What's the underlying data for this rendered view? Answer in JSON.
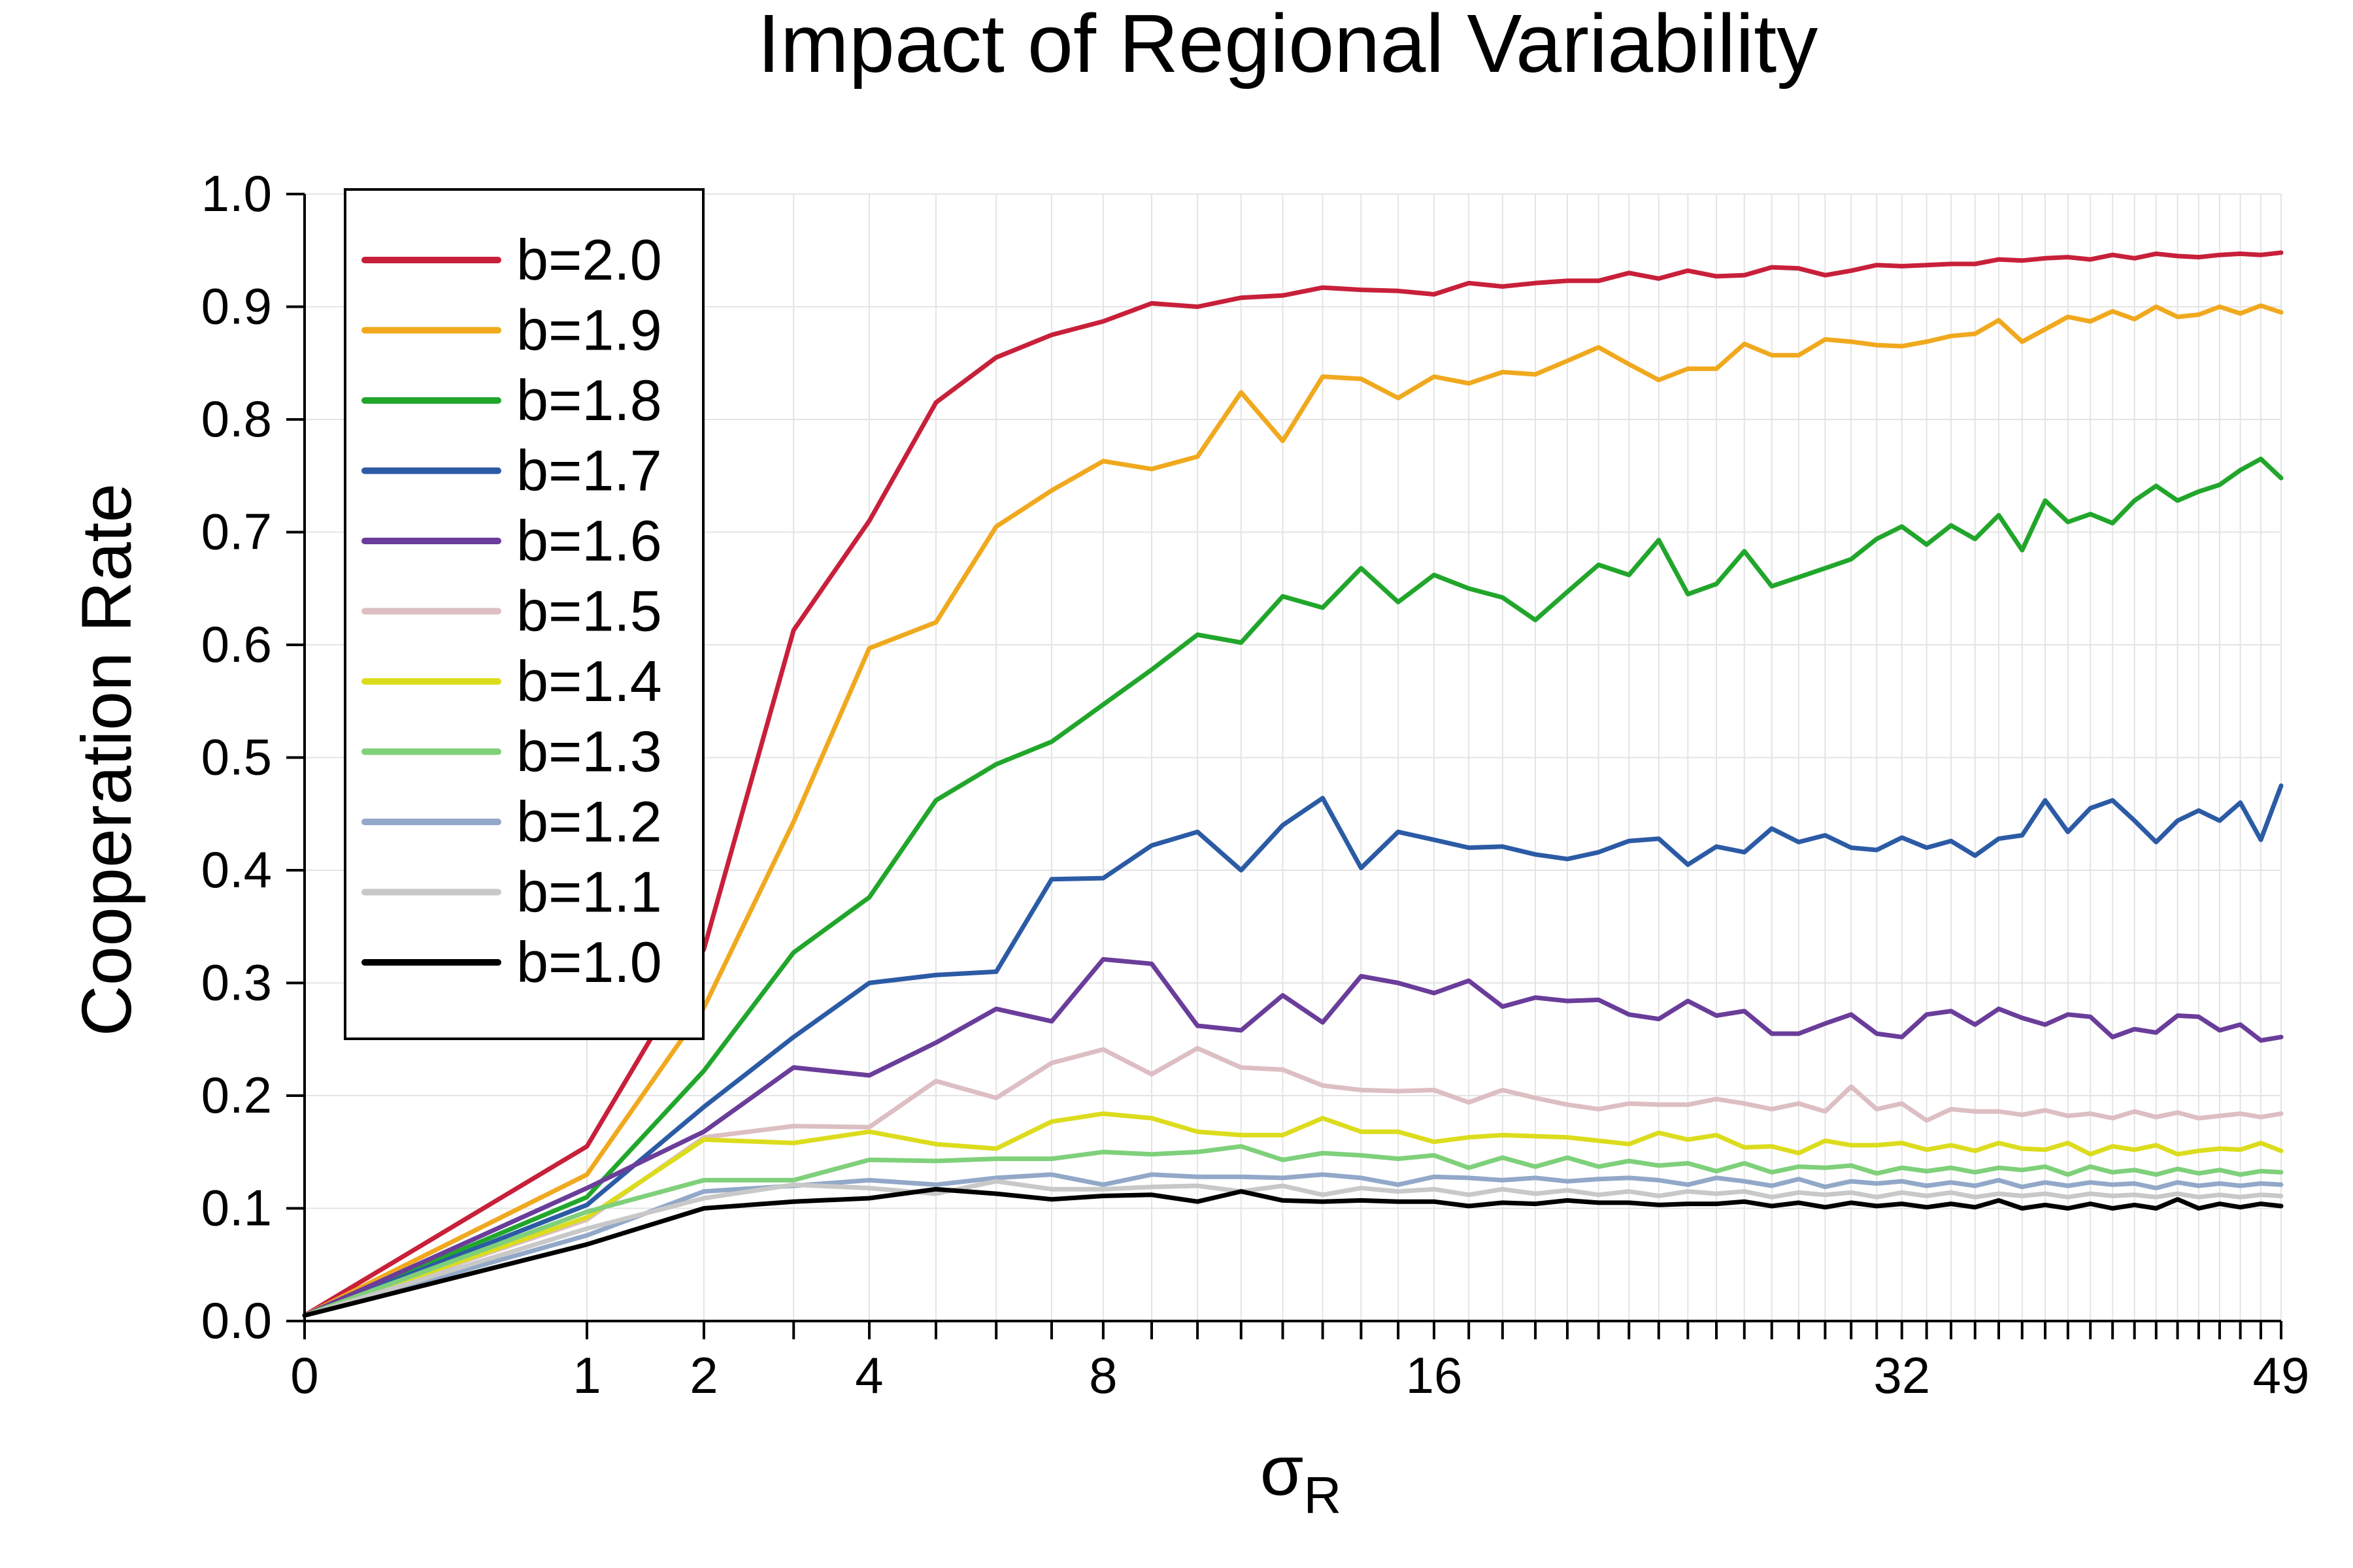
{
  "chart_data": {
    "type": "line",
    "title": "Impact of Regional Variability",
    "xlabel": "σ",
    "xlabel_sub": "R",
    "ylabel": "Cooperation Rate",
    "x_scale": "sqrt",
    "xlim": [
      0,
      49
    ],
    "ylim": [
      0,
      1
    ],
    "x_tick_labels": [
      "0",
      "1",
      "2",
      "4",
      "8",
      "16",
      "32",
      "49"
    ],
    "x_tick_values": [
      0,
      1,
      2,
      4,
      8,
      16,
      32,
      49
    ],
    "y_tick_labels": [
      "0.0",
      "0.1",
      "0.2",
      "0.3",
      "0.4",
      "0.5",
      "0.6",
      "0.7",
      "0.8",
      "0.9",
      "1.0"
    ],
    "y_tick_values": [
      0,
      0.1,
      0.2,
      0.3,
      0.4,
      0.5,
      0.6,
      0.7,
      0.8,
      0.9,
      1.0
    ],
    "grid": true,
    "legend_position": "top-left",
    "x": [
      0,
      1,
      2,
      3,
      4,
      5,
      6,
      7,
      8,
      9,
      10,
      11,
      12,
      13,
      14,
      15,
      16,
      17,
      18,
      19,
      20,
      21,
      22,
      23,
      24,
      25,
      26,
      27,
      28,
      29,
      30,
      31,
      32,
      33,
      34,
      35,
      36,
      37,
      38,
      39,
      40,
      41,
      42,
      43,
      44,
      45,
      46,
      47,
      48,
      49
    ],
    "series": [
      {
        "name": "b=2.0",
        "color": "#c8203a",
        "values": [
          0.005,
          0.155,
          0.33,
          0.613,
          0.71,
          0.815,
          0.855,
          0.875,
          0.887,
          0.903,
          0.9,
          0.908,
          0.91,
          0.917,
          0.915,
          0.914,
          0.911,
          0.921,
          0.918,
          0.921,
          0.923,
          0.923,
          0.93,
          0.925,
          0.932,
          0.927,
          0.928,
          0.935,
          0.934,
          0.928,
          0.932,
          0.937,
          0.936,
          0.937,
          0.938,
          0.938,
          0.942,
          0.941,
          0.943,
          0.944,
          0.942,
          0.946,
          0.943,
          0.947,
          0.945,
          0.944,
          0.946,
          0.947,
          0.946,
          0.948
        ]
      },
      {
        "name": "b=1.9",
        "color": "#f0a91e",
        "values": [
          0.005,
          0.13,
          0.278,
          0.443,
          0.597,
          0.62,
          0.705,
          0.737,
          0.763,
          0.756,
          0.767,
          0.824,
          0.781,
          0.838,
          0.836,
          0.819,
          0.838,
          0.832,
          0.842,
          0.84,
          0.852,
          0.864,
          0.849,
          0.835,
          0.845,
          0.845,
          0.867,
          0.857,
          0.857,
          0.871,
          0.869,
          0.866,
          0.865,
          0.869,
          0.874,
          0.876,
          0.888,
          0.869,
          0.88,
          0.891,
          0.887,
          0.896,
          0.889,
          0.9,
          0.891,
          0.893,
          0.9,
          0.894,
          0.901,
          0.895
        ]
      },
      {
        "name": "b=1.8",
        "color": "#21a62b",
        "values": [
          0.005,
          0.11,
          0.222,
          0.327,
          0.376,
          0.462,
          0.494,
          0.514,
          0.547,
          0.578,
          0.609,
          0.602,
          0.643,
          0.633,
          0.668,
          0.638,
          0.662,
          0.65,
          0.642,
          0.622,
          0.647,
          0.671,
          0.662,
          0.693,
          0.645,
          0.654,
          0.683,
          0.652,
          0.66,
          0.668,
          0.676,
          0.694,
          0.705,
          0.689,
          0.706,
          0.694,
          0.715,
          0.684,
          0.728,
          0.709,
          0.716,
          0.708,
          0.728,
          0.741,
          0.728,
          0.736,
          0.742,
          0.755,
          0.765,
          0.748
        ]
      },
      {
        "name": "b=1.7",
        "color": "#2c5ba5",
        "values": [
          0.005,
          0.103,
          0.19,
          0.252,
          0.3,
          0.307,
          0.31,
          0.392,
          0.393,
          0.422,
          0.434,
          0.4,
          0.44,
          0.464,
          0.402,
          0.434,
          0.427,
          0.42,
          0.421,
          0.414,
          0.41,
          0.416,
          0.426,
          0.428,
          0.405,
          0.421,
          0.416,
          0.437,
          0.425,
          0.431,
          0.42,
          0.418,
          0.429,
          0.42,
          0.426,
          0.413,
          0.428,
          0.431,
          0.462,
          0.434,
          0.455,
          0.462,
          0.444,
          0.425,
          0.444,
          0.453,
          0.444,
          0.46,
          0.427,
          0.475
        ]
      },
      {
        "name": "b=1.6",
        "color": "#6a3d9a",
        "values": [
          0.005,
          0.118,
          0.168,
          0.225,
          0.218,
          0.247,
          0.277,
          0.266,
          0.321,
          0.317,
          0.262,
          0.258,
          0.289,
          0.265,
          0.306,
          0.3,
          0.291,
          0.302,
          0.279,
          0.287,
          0.284,
          0.285,
          0.272,
          0.268,
          0.284,
          0.271,
          0.275,
          0.255,
          0.255,
          0.264,
          0.272,
          0.255,
          0.252,
          0.272,
          0.275,
          0.263,
          0.277,
          0.269,
          0.263,
          0.272,
          0.27,
          0.252,
          0.259,
          0.256,
          0.271,
          0.27,
          0.258,
          0.263,
          0.249,
          0.252
        ]
      },
      {
        "name": "b=1.5",
        "color": "#dcbec3",
        "values": [
          0.005,
          0.09,
          0.163,
          0.173,
          0.172,
          0.213,
          0.198,
          0.229,
          0.241,
          0.219,
          0.242,
          0.225,
          0.223,
          0.209,
          0.205,
          0.204,
          0.205,
          0.194,
          0.205,
          0.198,
          0.192,
          0.188,
          0.193,
          0.192,
          0.192,
          0.197,
          0.193,
          0.188,
          0.193,
          0.186,
          0.208,
          0.188,
          0.193,
          0.178,
          0.188,
          0.186,
          0.186,
          0.183,
          0.187,
          0.182,
          0.184,
          0.18,
          0.186,
          0.181,
          0.185,
          0.18,
          0.182,
          0.184,
          0.181,
          0.184
        ]
      },
      {
        "name": "b=1.4",
        "color": "#dcdc1e",
        "values": [
          0.005,
          0.092,
          0.161,
          0.158,
          0.168,
          0.157,
          0.153,
          0.177,
          0.184,
          0.18,
          0.168,
          0.165,
          0.165,
          0.18,
          0.168,
          0.168,
          0.159,
          0.163,
          0.165,
          0.164,
          0.163,
          0.16,
          0.157,
          0.167,
          0.161,
          0.165,
          0.154,
          0.155,
          0.149,
          0.16,
          0.156,
          0.156,
          0.158,
          0.152,
          0.156,
          0.151,
          0.158,
          0.153,
          0.152,
          0.158,
          0.148,
          0.155,
          0.152,
          0.156,
          0.148,
          0.151,
          0.153,
          0.152,
          0.158,
          0.151
        ]
      },
      {
        "name": "b=1.3",
        "color": "#7fd07a",
        "values": [
          0.005,
          0.097,
          0.125,
          0.125,
          0.143,
          0.142,
          0.144,
          0.144,
          0.15,
          0.148,
          0.15,
          0.155,
          0.143,
          0.149,
          0.147,
          0.144,
          0.147,
          0.136,
          0.145,
          0.137,
          0.145,
          0.137,
          0.142,
          0.138,
          0.14,
          0.133,
          0.14,
          0.132,
          0.137,
          0.136,
          0.138,
          0.131,
          0.136,
          0.133,
          0.136,
          0.132,
          0.136,
          0.134,
          0.137,
          0.13,
          0.137,
          0.132,
          0.134,
          0.13,
          0.135,
          0.131,
          0.134,
          0.13,
          0.133,
          0.132
        ]
      },
      {
        "name": "b=1.2",
        "color": "#92a8c8",
        "values": [
          0.005,
          0.076,
          0.115,
          0.12,
          0.125,
          0.121,
          0.127,
          0.13,
          0.121,
          0.13,
          0.128,
          0.128,
          0.127,
          0.13,
          0.127,
          0.121,
          0.128,
          0.127,
          0.125,
          0.127,
          0.124,
          0.126,
          0.127,
          0.125,
          0.121,
          0.127,
          0.124,
          0.12,
          0.126,
          0.119,
          0.124,
          0.122,
          0.124,
          0.12,
          0.123,
          0.12,
          0.125,
          0.119,
          0.123,
          0.12,
          0.123,
          0.121,
          0.122,
          0.118,
          0.123,
          0.12,
          0.122,
          0.12,
          0.122,
          0.121
        ]
      },
      {
        "name": "b=1.1",
        "color": "#c8c8c8",
        "values": [
          0.005,
          0.082,
          0.109,
          0.121,
          0.118,
          0.113,
          0.124,
          0.117,
          0.117,
          0.119,
          0.12,
          0.115,
          0.12,
          0.112,
          0.118,
          0.115,
          0.117,
          0.112,
          0.117,
          0.113,
          0.116,
          0.112,
          0.115,
          0.111,
          0.115,
          0.113,
          0.115,
          0.11,
          0.114,
          0.112,
          0.114,
          0.11,
          0.114,
          0.111,
          0.114,
          0.11,
          0.113,
          0.111,
          0.113,
          0.11,
          0.113,
          0.111,
          0.112,
          0.11,
          0.113,
          0.11,
          0.112,
          0.11,
          0.112,
          0.111
        ]
      },
      {
        "name": "b=1.0",
        "color": "#000000",
        "values": [
          0.005,
          0.068,
          0.1,
          0.106,
          0.109,
          0.117,
          0.113,
          0.108,
          0.111,
          0.112,
          0.106,
          0.115,
          0.107,
          0.106,
          0.107,
          0.106,
          0.106,
          0.102,
          0.105,
          0.104,
          0.107,
          0.105,
          0.105,
          0.103,
          0.104,
          0.104,
          0.106,
          0.102,
          0.105,
          0.101,
          0.105,
          0.102,
          0.104,
          0.101,
          0.104,
          0.101,
          0.107,
          0.1,
          0.103,
          0.1,
          0.104,
          0.1,
          0.103,
          0.1,
          0.108,
          0.1,
          0.104,
          0.101,
          0.104,
          0.102
        ]
      }
    ]
  }
}
